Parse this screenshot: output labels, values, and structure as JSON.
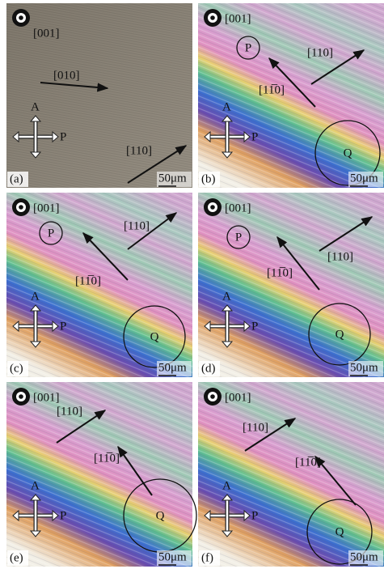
{
  "panels": [
    {
      "label": "(a)",
      "zone_axis": "[001]",
      "directions": [
        "[010]",
        "[110]"
      ],
      "polarizers": [
        "A",
        "P"
      ],
      "circles": [],
      "scale_bar": "50μm"
    },
    {
      "label": "(b)",
      "zone_axis": "[001]",
      "directions": [
        "[110]",
        "[11̅0]"
      ],
      "polarizers": [
        "A",
        "P"
      ],
      "circles": [
        "P",
        "Q"
      ],
      "scale_bar": "50μm"
    },
    {
      "label": "(c)",
      "zone_axis": "[001]",
      "directions": [
        "[110]",
        "[11̅0]"
      ],
      "polarizers": [
        "A",
        "P"
      ],
      "circles": [
        "P",
        "Q"
      ],
      "scale_bar": "50μm"
    },
    {
      "label": "(d)",
      "zone_axis": "[001]",
      "directions": [
        "[110]",
        "[11̅0]"
      ],
      "polarizers": [
        "A",
        "P"
      ],
      "circles": [
        "P",
        "Q"
      ],
      "scale_bar": "50μm"
    },
    {
      "label": "(e)",
      "zone_axis": "[001]",
      "directions": [
        "[110]",
        "[11̅0]"
      ],
      "polarizers": [
        "A",
        "P"
      ],
      "circles": [
        "Q"
      ],
      "scale_bar": "50μm"
    },
    {
      "label": "(f)",
      "zone_axis": "[001]",
      "directions": [
        "[110]",
        "[11̅0]"
      ],
      "polarizers": [
        "A",
        "P"
      ],
      "circles": [
        "Q"
      ],
      "scale_bar": "50μm"
    }
  ]
}
